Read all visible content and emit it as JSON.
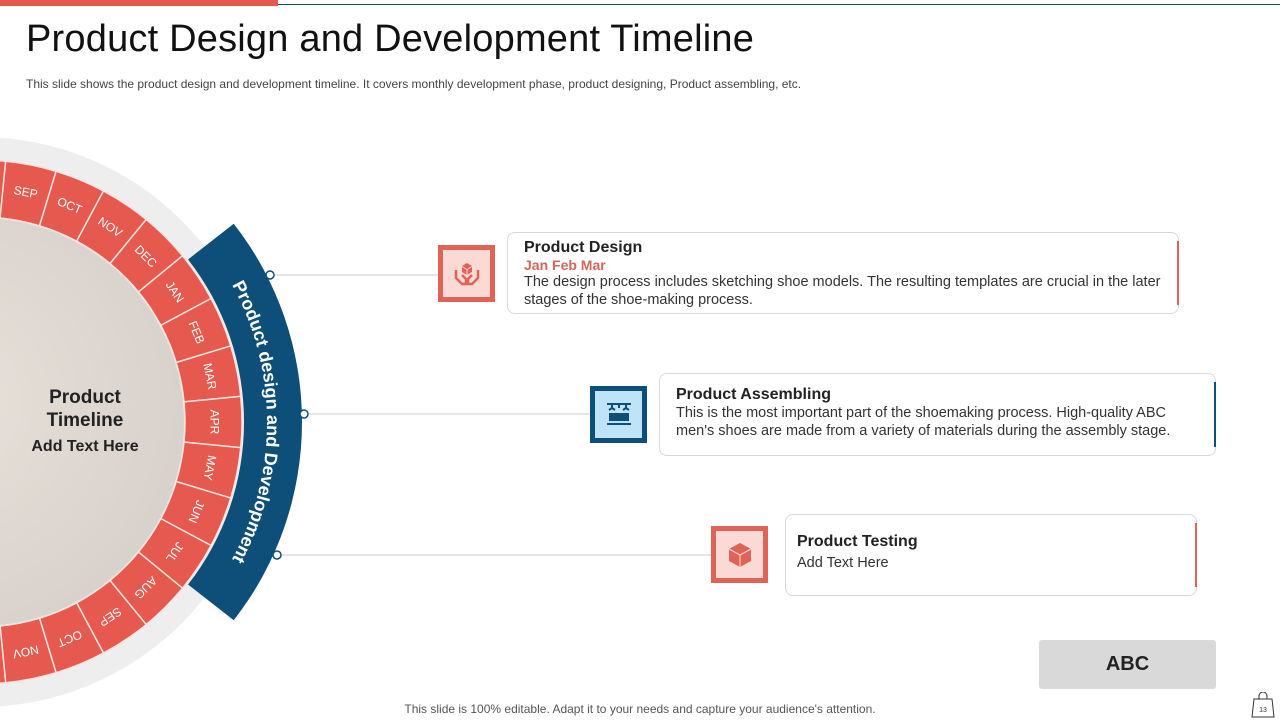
{
  "header": {
    "title": "Product Design and Development Timeline",
    "subtitle": "This slide shows the product design and development timeline. It covers monthly development phase, product designing, Product assembling, etc."
  },
  "wheel": {
    "months": [
      "SEP",
      "OCT",
      "NOV",
      "DEC",
      "JAN",
      "FEB",
      "MAR",
      "APR",
      "MAY",
      "JUN",
      "JUL",
      "AUG",
      "SEP",
      "OCT",
      "NOV"
    ],
    "arc_label": "Product design and Development",
    "center_title": "Product Timeline",
    "center_text": "Add Text Here"
  },
  "items": [
    {
      "title": "Product Design",
      "months": "Jan Feb Mar",
      "desc": "The design process includes sketching shoe models. The resulting templates are crucial in the later stages of the shoe-making process.",
      "icon": "hands-holding-box-icon"
    },
    {
      "title": "Product Assembling",
      "desc": "This is the most important part of the shoemaking process. High-quality ABC men's shoes are made from a variety of materials during the assembly stage.",
      "icon": "assembly-line-icon"
    },
    {
      "title": "Product Testing",
      "desc": "Add Text Here",
      "icon": "cube-icon"
    }
  ],
  "abc_label": "ABC",
  "footer": "This slide is 100% editable. Adapt it to your needs and capture your audience's attention.",
  "page_number": "13",
  "colors": {
    "red": "#e5594e",
    "blue": "#0e4f7a",
    "light_red": "#fbd9d5",
    "light_blue": "#bfe4f8"
  }
}
